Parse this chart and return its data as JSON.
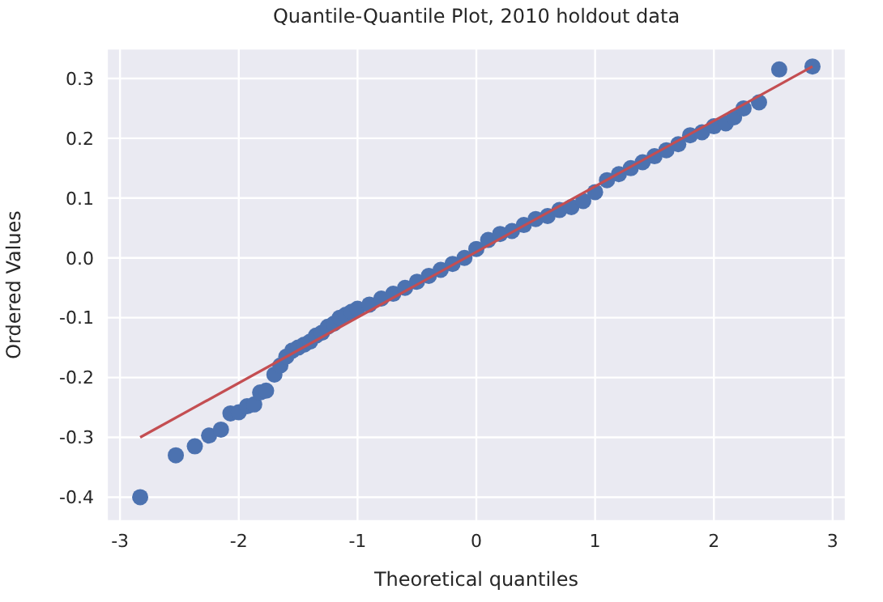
{
  "chart_data": {
    "type": "scatter",
    "title": "Quantile-Quantile Plot, 2010 holdout data",
    "xlabel": "Theoretical quantiles",
    "ylabel": "Ordered Values",
    "xlim": [
      -3.11,
      3.11
    ],
    "ylim": [
      -0.44,
      0.35
    ],
    "xticks": [
      -3,
      -2,
      -1,
      0,
      1,
      2,
      3
    ],
    "yticks": [
      -0.4,
      -0.3,
      -0.2,
      -0.1,
      {
        "value": 0,
        "label": "0.0"
      },
      0.1,
      0.2,
      0.3
    ],
    "grid": true,
    "legend": false,
    "series": [
      {
        "marker": "circle",
        "color": "#4c72b0",
        "x": [
          -2.83,
          -2.53,
          -2.37,
          -2.25,
          -2.15,
          -2.07,
          -2.0,
          -1.93,
          -1.87,
          -1.82,
          -1.77,
          -1.7,
          -1.65,
          -1.6,
          -1.55,
          -1.5,
          -1.45,
          -1.4,
          -1.35,
          -1.3,
          -1.25,
          -1.2,
          -1.15,
          -1.1,
          -1.05,
          -1.0,
          -0.9,
          -0.8,
          -0.7,
          -0.6,
          -0.5,
          -0.4,
          -0.3,
          -0.2,
          -0.1,
          0.0,
          0.1,
          0.2,
          0.3,
          0.4,
          0.5,
          0.6,
          0.7,
          0.8,
          0.9,
          1.0,
          1.1,
          1.2,
          1.3,
          1.4,
          1.5,
          1.6,
          1.7,
          1.8,
          1.9,
          2.0,
          2.1,
          2.17,
          2.25,
          2.38,
          2.55,
          2.83
        ],
        "values": [
          -0.4,
          -0.33,
          -0.315,
          -0.297,
          -0.287,
          -0.26,
          -0.258,
          -0.248,
          -0.245,
          -0.225,
          -0.222,
          -0.195,
          -0.18,
          -0.165,
          -0.155,
          -0.15,
          -0.145,
          -0.14,
          -0.13,
          -0.125,
          -0.115,
          -0.11,
          -0.1,
          -0.095,
          -0.09,
          -0.085,
          -0.078,
          -0.068,
          -0.06,
          -0.05,
          -0.04,
          -0.03,
          -0.02,
          -0.01,
          0.0,
          0.015,
          0.03,
          0.04,
          0.045,
          0.055,
          0.065,
          0.07,
          0.08,
          0.085,
          0.095,
          0.11,
          0.13,
          0.14,
          0.15,
          0.16,
          0.17,
          0.18,
          0.19,
          0.205,
          0.21,
          0.22,
          0.225,
          0.235,
          0.25,
          0.26,
          0.315,
          0.32
        ]
      },
      {
        "type": "line",
        "marker": "none",
        "color": "#c44e52",
        "x": [
          -2.83,
          2.83
        ],
        "values": [
          -0.3,
          0.32
        ]
      }
    ]
  }
}
